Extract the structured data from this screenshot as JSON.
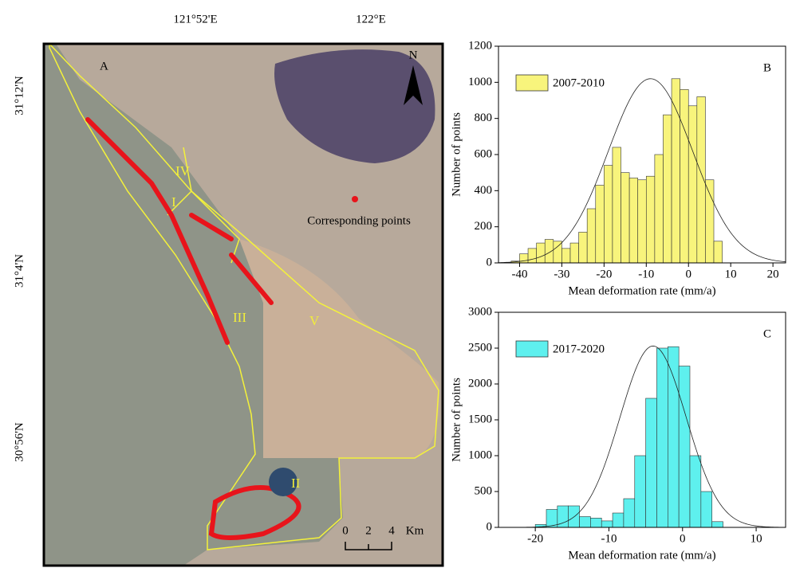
{
  "map": {
    "panel": "A",
    "north": "N",
    "lon_labels": [
      "121°52'E",
      "122°E"
    ],
    "lat_labels": [
      "31°12'N",
      "31°4'N",
      "30°56'N"
    ],
    "zones": [
      "I",
      "II",
      "III",
      "IV",
      "V"
    ],
    "points_label": "Corresponding points",
    "scale": [
      "0",
      "2",
      "4",
      "Km"
    ]
  },
  "chart_data": [
    {
      "type": "histogram",
      "panel": "B",
      "xlabel": "Mean deformation rate (mm/a)",
      "ylabel": "Number of points",
      "color": "#f8f47c",
      "series_name": "2007-2010",
      "bins": [
        -42,
        -40,
        -38,
        -36,
        -34,
        -32,
        -30,
        -28,
        -26,
        -24,
        -22,
        -20,
        -18,
        -16,
        -14,
        -12,
        -10,
        -8,
        -6,
        -4,
        -2,
        0,
        2,
        4,
        6,
        8
      ],
      "counts": [
        10,
        50,
        80,
        110,
        130,
        120,
        80,
        110,
        170,
        300,
        430,
        540,
        640,
        500,
        470,
        460,
        480,
        600,
        820,
        1020,
        960,
        870,
        920,
        460,
        120
      ],
      "fit": {
        "mean": -9,
        "sd": 10,
        "peak": 1020
      },
      "xlim": [
        -45,
        23
      ],
      "xticks": [
        -40,
        -30,
        -20,
        -10,
        0,
        10,
        20
      ],
      "ylim": [
        0,
        1200
      ],
      "yticks": [
        0,
        200,
        400,
        600,
        800,
        1000,
        1200
      ]
    },
    {
      "type": "histogram",
      "panel": "C",
      "xlabel": "Mean deformation rate (mm/a)",
      "ylabel": "Number of points",
      "color": "#5ef0ee",
      "series_name": "2017-2020",
      "bins": [
        -20,
        -18.5,
        -17,
        -15.5,
        -14,
        -12.5,
        -11,
        -9.5,
        -8,
        -6.5,
        -5,
        -3.5,
        -2,
        -0.5,
        1,
        2.5,
        4,
        5.5
      ],
      "counts": [
        40,
        250,
        300,
        300,
        150,
        130,
        90,
        200,
        400,
        1000,
        1800,
        2500,
        2520,
        2250,
        1000,
        500,
        80
      ],
      "fit": {
        "mean": -4,
        "sd": 4.5,
        "peak": 2530
      },
      "xlim": [
        -25,
        14
      ],
      "xticks": [
        -20,
        -10,
        0,
        10
      ],
      "ylim": [
        0,
        3000
      ],
      "yticks": [
        0,
        500,
        1000,
        1500,
        2000,
        2500,
        3000
      ]
    }
  ]
}
